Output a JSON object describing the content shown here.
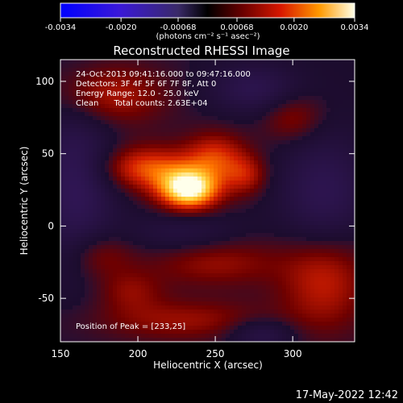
{
  "chart_data": {
    "type": "heatmap",
    "title": "Reconstructed RHESSI Image",
    "xlabel": "Heliocentric X (arcsec)",
    "ylabel": "Heliocentric Y (arcsec)",
    "xlim": [
      150,
      340
    ],
    "ylim": [
      -80,
      115
    ],
    "xticks": [
      150,
      200,
      250,
      300
    ],
    "yticks": [
      100,
      50,
      0,
      -50
    ],
    "grid": false,
    "colorbar": {
      "orientation": "horizontal",
      "position": "top",
      "range": [
        -0.0034,
        0.0034
      ],
      "ticks": [
        "-0.0034",
        "-0.0020",
        "-0.00068",
        "0.00068",
        "0.0020",
        "0.0034"
      ],
      "tick_values": [
        -0.0034,
        -0.002,
        -0.00068,
        0.00068,
        0.002,
        0.0034
      ],
      "units": "(photons cm⁻² s⁻¹ asec⁻²)"
    },
    "annotations": {
      "time_range": "24-Oct-2013 09:41:16.000 to 09:47:16.000",
      "detectors": "Detectors: 3F 4F 5F 6F 7F 8F, Att 0",
      "energy_range": "Energy Range: 12.0 - 25.0 keV",
      "clean_counts": "Clean      Total counts: 2.63E+04",
      "peak": "Position of Peak = [233,25]"
    },
    "peak_position": [
      233,
      25
    ],
    "sources": [
      {
        "x": 233,
        "y": 25,
        "sx": 14,
        "sy": 10,
        "amp": 1.0
      },
      {
        "x": 205,
        "y": 40,
        "sx": 22,
        "sy": 11,
        "amp": 0.55
      },
      {
        "x": 250,
        "y": 48,
        "sx": 14,
        "sy": 12,
        "amp": 0.45
      },
      {
        "x": 270,
        "y": 35,
        "sx": 10,
        "sy": 10,
        "amp": 0.35
      },
      {
        "x": 180,
        "y": 90,
        "sx": 25,
        "sy": 15,
        "amp": 0.4
      },
      {
        "x": 300,
        "y": 75,
        "sx": 14,
        "sy": 12,
        "amp": 0.3
      },
      {
        "x": 320,
        "y": -35,
        "sx": 20,
        "sy": 25,
        "amp": 0.45
      },
      {
        "x": 175,
        "y": -20,
        "sx": 15,
        "sy": 12,
        "amp": 0.3
      },
      {
        "x": 250,
        "y": -25,
        "sx": 30,
        "sy": 12,
        "amp": 0.3
      },
      {
        "x": 230,
        "y": -65,
        "sx": 40,
        "sy": 10,
        "amp": 0.3
      },
      {
        "x": 195,
        "y": -45,
        "sx": 15,
        "sy": 10,
        "amp": 0.25
      }
    ],
    "negative_regions": [
      {
        "x": 160,
        "y": 30,
        "sx": 18,
        "sy": 40,
        "amp": 0.5
      },
      {
        "x": 320,
        "y": 20,
        "sx": 20,
        "sy": 30,
        "amp": 0.45
      },
      {
        "x": 275,
        "y": 95,
        "sx": 20,
        "sy": 12,
        "amp": 0.4
      },
      {
        "x": 230,
        "y": -5,
        "sx": 25,
        "sy": 10,
        "amp": 0.25
      },
      {
        "x": 280,
        "y": -75,
        "sx": 15,
        "sy": 8,
        "amp": 0.35
      }
    ]
  },
  "footer": {
    "date": "17-May-2022 12:42"
  }
}
